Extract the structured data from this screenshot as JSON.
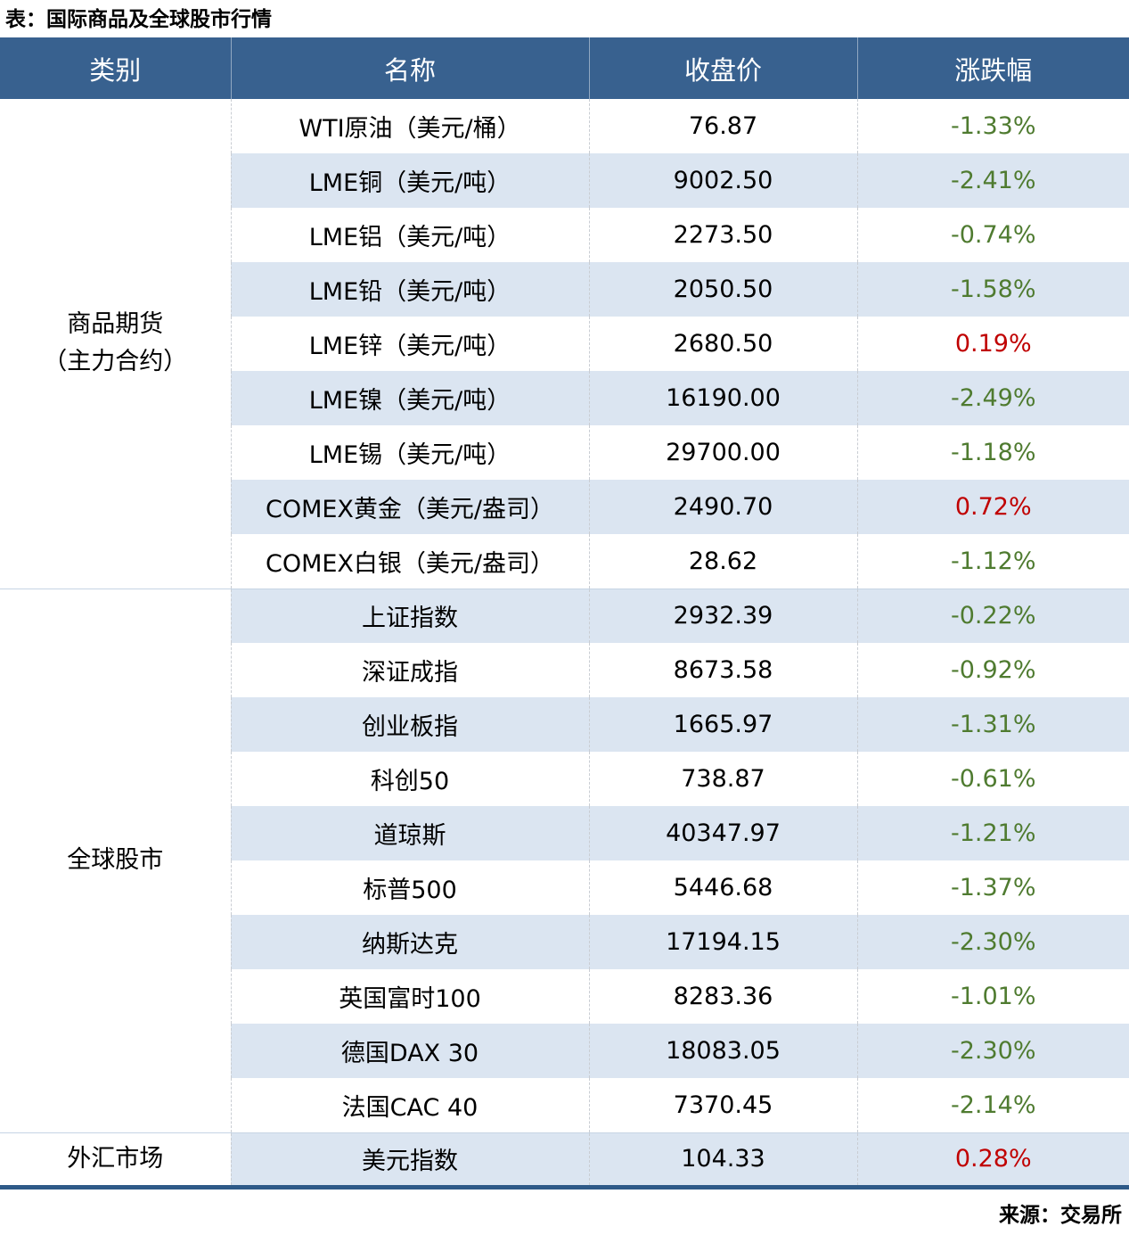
{
  "chart_data": {
    "type": "table",
    "title": "表：国际商品及全球股市行情",
    "source": "来源：交易所",
    "columns": [
      "类别",
      "名称",
      "收盘价",
      "涨跌幅"
    ],
    "sections": [
      {
        "category": "商品期货\n（主力合约）",
        "rows": [
          {
            "name": "WTI原油（美元/桶）",
            "close": "76.87",
            "change": "-1.33%"
          },
          {
            "name": "LME铜（美元/吨）",
            "close": "9002.50",
            "change": "-2.41%"
          },
          {
            "name": "LME铝（美元/吨）",
            "close": "2273.50",
            "change": "-0.74%"
          },
          {
            "name": "LME铅（美元/吨）",
            "close": "2050.50",
            "change": "-1.58%"
          },
          {
            "name": "LME锌（美元/吨）",
            "close": "2680.50",
            "change": "0.19%"
          },
          {
            "name": "LME镍（美元/吨）",
            "close": "16190.00",
            "change": "-2.49%"
          },
          {
            "name": "LME锡（美元/吨）",
            "close": "29700.00",
            "change": "-1.18%"
          },
          {
            "name": "COMEX黄金（美元/盎司）",
            "close": "2490.70",
            "change": "0.72%"
          },
          {
            "name": "COMEX白银（美元/盎司）",
            "close": "28.62",
            "change": "-1.12%"
          }
        ]
      },
      {
        "category": "全球股市",
        "rows": [
          {
            "name": "上证指数",
            "close": "2932.39",
            "change": "-0.22%"
          },
          {
            "name": "深证成指",
            "close": "8673.58",
            "change": "-0.92%"
          },
          {
            "name": "创业板指",
            "close": "1665.97",
            "change": "-1.31%"
          },
          {
            "name": "科创50",
            "close": "738.87",
            "change": "-0.61%"
          },
          {
            "name": "道琼斯",
            "close": "40347.97",
            "change": "-1.21%"
          },
          {
            "name": "标普500",
            "close": "5446.68",
            "change": "-1.37%"
          },
          {
            "name": "纳斯达克",
            "close": "17194.15",
            "change": "-2.30%"
          },
          {
            "name": "英国富时100",
            "close": "8283.36",
            "change": "-1.01%"
          },
          {
            "name": "德国DAX 30",
            "close": "18083.05",
            "change": "-2.30%"
          },
          {
            "name": "法国CAC 40",
            "close": "7370.45",
            "change": "-2.14%"
          }
        ]
      },
      {
        "category": "外汇市场",
        "rows": [
          {
            "name": "美元指数",
            "close": "104.33",
            "change": "0.28%"
          }
        ]
      }
    ]
  },
  "colors": {
    "header_bg": "#38618F",
    "stripe_bg": "#DBE5F1",
    "down_green": "#4F7B30",
    "up_red": "#C00000",
    "bottom_line": "#2E5A88"
  }
}
